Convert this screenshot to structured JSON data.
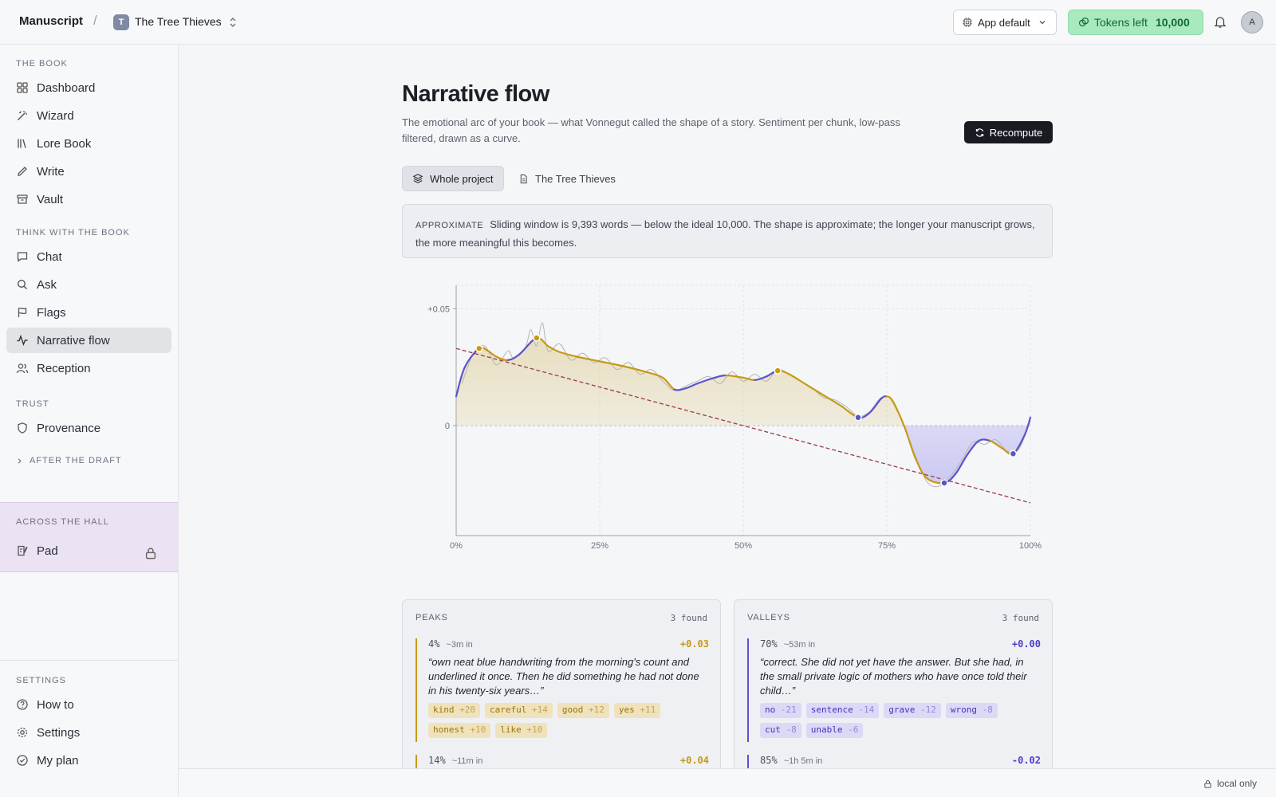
{
  "app": {
    "name": "Manuscript",
    "separator": "/",
    "project_initial": "T",
    "project_name": "The Tree Thieves"
  },
  "topbar": {
    "model_label": "App default",
    "tokens_label": "Tokens left",
    "tokens_value": "10,000",
    "avatar_initial": "A"
  },
  "sidebar": {
    "section_book": "THE BOOK",
    "book_items": [
      "Dashboard",
      "Wizard",
      "Lore Book",
      "Write",
      "Vault"
    ],
    "section_think": "THINK WITH THE BOOK",
    "think_items": [
      "Chat",
      "Ask",
      "Flags",
      "Narrative flow",
      "Reception"
    ],
    "active_item": "Narrative flow",
    "section_trust": "TRUST",
    "trust_items": [
      "Provenance"
    ],
    "after_draft": "AFTER THE DRAFT",
    "section_hall": "ACROSS THE HALL",
    "hall_items": [
      "Pad"
    ],
    "section_settings": "SETTINGS",
    "settings_items": [
      "How to",
      "Settings",
      "My plan"
    ]
  },
  "page": {
    "title": "Narrative flow",
    "subtitle": "The emotional arc of your book — what Vonnegut called the shape of a story. Sentiment per chunk, low-pass filtered, drawn as a curve.",
    "recompute_label": "Recompute",
    "scope_whole": "Whole project",
    "scope_doc": "The Tree Thieves",
    "notice_tag": "APPROXIMATE",
    "notice_text": "Sliding window is 9,393 words — below the ideal 10,000. The shape is approximate; the longer your manuscript grows, the more meaningful this becomes."
  },
  "chart_data": {
    "type": "line",
    "x_ticks": [
      "0%",
      "25%",
      "50%",
      "75%",
      "100%"
    ],
    "y_ticks": [
      "+0.05",
      "0"
    ],
    "xlim": [
      0,
      100
    ],
    "ylim": [
      -0.047,
      0.06
    ],
    "grid": true,
    "colors": {
      "rising": "#5b54c9",
      "falling": "#c79a14",
      "trend": "#9b3a4a",
      "raw": "#b5b5b5"
    },
    "smoothed": [
      [
        0,
        0.0125
      ],
      [
        1.5,
        0.025
      ],
      [
        4,
        0.033
      ],
      [
        5.5,
        0.032
      ],
      [
        7,
        0.0295
      ],
      [
        9,
        0.028
      ],
      [
        11,
        0.0305
      ],
      [
        14,
        0.0375
      ],
      [
        16,
        0.034
      ],
      [
        18,
        0.0315
      ],
      [
        21,
        0.0295
      ],
      [
        25,
        0.0275
      ],
      [
        29,
        0.0255
      ],
      [
        33,
        0.023
      ],
      [
        36,
        0.0205
      ],
      [
        38,
        0.0155
      ],
      [
        40,
        0.016
      ],
      [
        42,
        0.018
      ],
      [
        45,
        0.0205
      ],
      [
        47,
        0.0215
      ],
      [
        50,
        0.0205
      ],
      [
        52,
        0.0195
      ],
      [
        54,
        0.021
      ],
      [
        56,
        0.0235
      ],
      [
        58,
        0.022
      ],
      [
        61,
        0.0175
      ],
      [
        64,
        0.013
      ],
      [
        67,
        0.0085
      ],
      [
        70,
        0.0035
      ],
      [
        72,
        0.0055
      ],
      [
        74,
        0.0115
      ],
      [
        75,
        0.0125
      ],
      [
        76,
        0.0105
      ],
      [
        78,
        0.0
      ],
      [
        80,
        -0.014
      ],
      [
        82,
        -0.0225
      ],
      [
        85,
        -0.0245
      ],
      [
        87,
        -0.0205
      ],
      [
        89,
        -0.0125
      ],
      [
        91,
        -0.0065
      ],
      [
        93,
        -0.0065
      ],
      [
        95,
        -0.0095
      ],
      [
        97,
        -0.012
      ],
      [
        99,
        -0.004
      ],
      [
        100,
        0.0035
      ]
    ],
    "raw": [
      [
        1,
        0.018
      ],
      [
        3,
        0.031
      ],
      [
        5,
        0.034
      ],
      [
        7,
        0.026
      ],
      [
        9,
        0.032
      ],
      [
        10,
        0.029
      ],
      [
        12,
        0.033
      ],
      [
        13,
        0.041
      ],
      [
        14,
        0.034
      ],
      [
        15,
        0.044
      ],
      [
        16,
        0.032
      ],
      [
        18,
        0.035
      ],
      [
        20,
        0.028
      ],
      [
        22,
        0.031
      ],
      [
        24,
        0.027
      ],
      [
        26,
        0.029
      ],
      [
        28,
        0.024
      ],
      [
        30,
        0.027
      ],
      [
        32,
        0.022
      ],
      [
        34,
        0.024
      ],
      [
        36,
        0.019
      ],
      [
        38,
        0.015
      ],
      [
        40,
        0.017
      ],
      [
        42,
        0.019
      ],
      [
        44,
        0.021
      ],
      [
        46,
        0.018
      ],
      [
        48,
        0.023
      ],
      [
        50,
        0.019
      ],
      [
        52,
        0.022
      ],
      [
        54,
        0.019
      ],
      [
        56,
        0.024
      ],
      [
        58,
        0.022
      ],
      [
        60,
        0.019
      ],
      [
        62,
        0.016
      ],
      [
        64,
        0.012
      ],
      [
        66,
        0.011
      ],
      [
        68,
        0.008
      ],
      [
        70,
        0.004
      ],
      [
        72,
        0.006
      ],
      [
        74,
        0.012
      ],
      [
        76,
        0.011
      ],
      [
        78,
        0.0
      ],
      [
        80,
        -0.013
      ],
      [
        82,
        -0.024
      ],
      [
        84,
        -0.026
      ],
      [
        86,
        -0.022
      ],
      [
        88,
        -0.015
      ],
      [
        90,
        -0.007
      ],
      [
        92,
        -0.008
      ],
      [
        94,
        -0.006
      ],
      [
        96,
        -0.011
      ],
      [
        98,
        -0.01
      ],
      [
        100,
        0.002
      ]
    ],
    "trend": [
      [
        0,
        0.033
      ],
      [
        100,
        -0.033
      ]
    ],
    "peaks": [
      [
        4,
        0.033
      ],
      [
        14,
        0.0375
      ],
      [
        56,
        0.0235
      ]
    ],
    "valleys": [
      [
        70,
        0.0035
      ],
      [
        85,
        -0.0245
      ],
      [
        97,
        -0.012
      ]
    ]
  },
  "peaks_card": {
    "title": "PEAKS",
    "count": "3 found",
    "entries": [
      {
        "pct": "4%",
        "ago": "~3m in",
        "score": "+0.03",
        "quote": "“own neat blue handwriting from the morning's count and underlined it once. Then he did something he had not done in his twenty-six years…”",
        "chips": [
          [
            "kind",
            "+20"
          ],
          [
            "careful",
            "+14"
          ],
          [
            "good",
            "+12"
          ],
          [
            "yes",
            "+11"
          ],
          [
            "honest",
            "+10"
          ],
          [
            "like",
            "+10"
          ]
        ]
      },
      {
        "pct": "14%",
        "ago": "~11m in",
        "score": "+0.04",
        "quote": "",
        "chips": []
      }
    ]
  },
  "valleys_card": {
    "title": "VALLEYS",
    "count": "3 found",
    "entries": [
      {
        "pct": "70%",
        "ago": "~53m in",
        "score": "+0.00",
        "quote": "“correct. She did not yet have the answer. But she had, in the small private logic of mothers who have once told their child…”",
        "chips": [
          [
            "no",
            "-21"
          ],
          [
            "sentence",
            "-14"
          ],
          [
            "grave",
            "-12"
          ],
          [
            "wrong",
            "-8"
          ],
          [
            "cut",
            "-8"
          ],
          [
            "unable",
            "-6"
          ]
        ]
      },
      {
        "pct": "85%",
        "ago": "~1h 5m in",
        "score": "-0.02",
        "quote": "",
        "chips": []
      }
    ]
  },
  "status": {
    "local_only": "local only"
  }
}
